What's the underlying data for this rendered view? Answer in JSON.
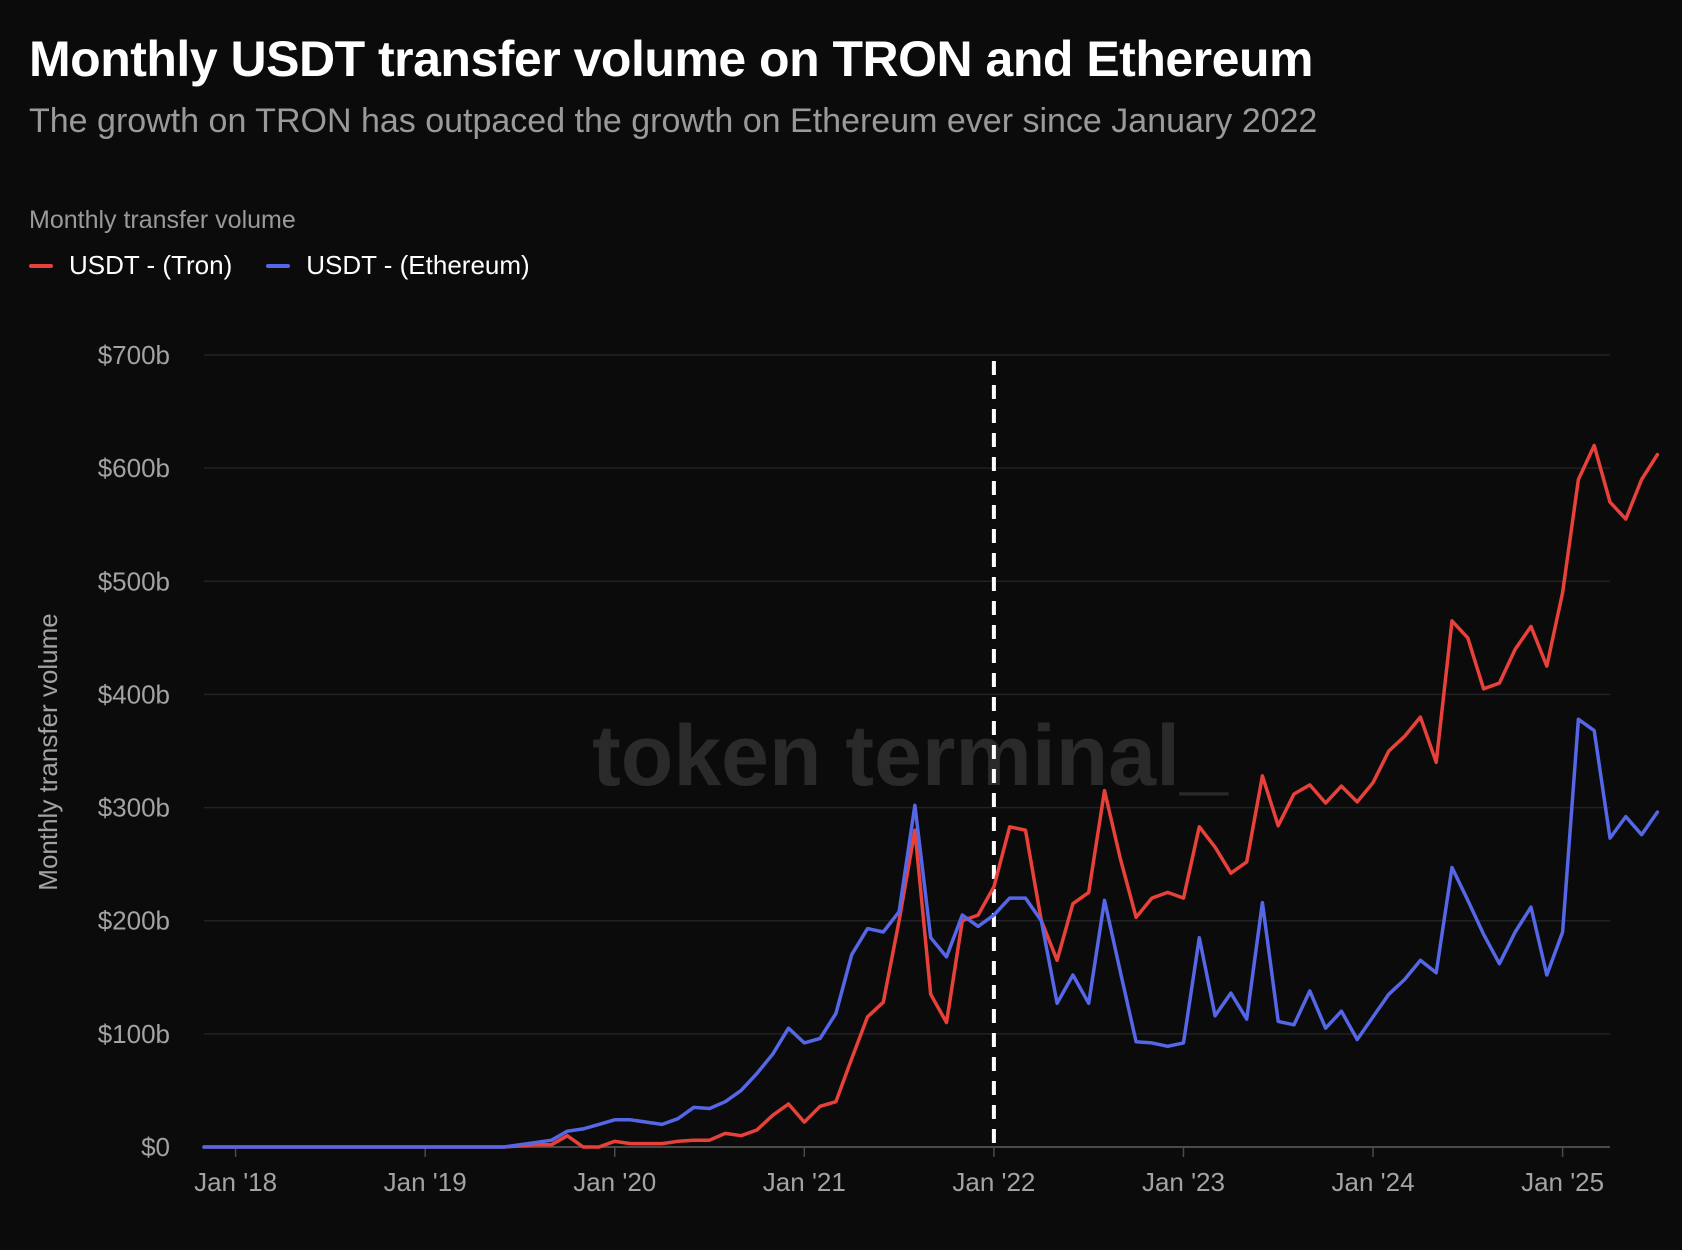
{
  "title": "Monthly USDT transfer volume on TRON and Ethereum",
  "subtitle": "The growth on TRON has outpaced the growth on Ethereum ever since January 2022",
  "legend": {
    "title": "Monthly transfer volume",
    "items": [
      {
        "label": "USDT - (Tron)",
        "color": "#e8413a"
      },
      {
        "label": "USDT - (Ethereum)",
        "color": "#5566e6"
      }
    ]
  },
  "watermark": "token terminal_",
  "colors": {
    "background": "#0b0b0c",
    "grid": "#222224",
    "axis": "#4a4a4d",
    "marker": "#ffffff"
  },
  "chart_data": {
    "type": "line",
    "ylabel": "Monthly transfer volume",
    "xlabel": "",
    "y_unit": "billions USD",
    "ylim": [
      0,
      700
    ],
    "yticks": [
      0,
      100,
      200,
      300,
      400,
      500,
      600,
      700
    ],
    "ytick_labels": [
      "$0",
      "$100b",
      "$200b",
      "$300b",
      "$400b",
      "$500b",
      "$600b",
      "$700b"
    ],
    "xlim": [
      "2017-11",
      "2025-04"
    ],
    "xticks": [
      "2018-01",
      "2019-01",
      "2020-01",
      "2021-01",
      "2022-01",
      "2023-01",
      "2024-01",
      "2025-01"
    ],
    "xtick_labels": [
      "Jan '18",
      "Jan '19",
      "Jan '20",
      "Jan '21",
      "Jan '22",
      "Jan '23",
      "Jan '24",
      "Jan '25"
    ],
    "grid": true,
    "legend_position": "top-left",
    "annotations": [
      {
        "type": "vertical-dashed-line",
        "x": "2022-01"
      }
    ],
    "start_month": "2017-11",
    "series": [
      {
        "name": "USDT - (Tron)",
        "color": "#e8413a",
        "values": [
          0,
          0,
          0,
          0,
          0,
          0,
          0,
          0,
          0,
          0,
          0,
          0,
          0,
          0,
          0,
          0,
          0,
          0,
          0,
          0,
          1,
          2,
          2,
          10,
          0,
          0,
          5,
          3,
          3,
          3,
          5,
          6,
          6,
          12,
          10,
          15,
          28,
          38,
          22,
          36,
          40,
          78,
          115,
          128,
          200,
          280,
          135,
          110,
          200,
          205,
          230,
          283,
          280,
          200,
          165,
          215,
          225,
          315,
          255,
          203,
          220,
          225,
          220,
          283,
          265,
          242,
          252,
          328,
          284,
          312,
          320,
          304,
          319,
          305,
          322,
          350,
          363,
          380,
          340,
          465,
          450,
          405,
          410,
          440,
          460,
          425,
          490,
          590,
          620,
          570,
          555,
          590,
          612
        ]
      },
      {
        "name": "USDT - (Ethereum)",
        "color": "#5566e6",
        "values": [
          0,
          0,
          0,
          0,
          0,
          0,
          0,
          0,
          0,
          0,
          0,
          0,
          0,
          0,
          0,
          0,
          0,
          0,
          0,
          0,
          2,
          4,
          6,
          14,
          16,
          20,
          24,
          24,
          22,
          20,
          25,
          35,
          34,
          40,
          50,
          65,
          82,
          105,
          92,
          96,
          118,
          170,
          193,
          190,
          208,
          302,
          185,
          168,
          205,
          195,
          205,
          220,
          220,
          200,
          127,
          152,
          127,
          218,
          155,
          93,
          92,
          89,
          92,
          185,
          116,
          136,
          113,
          216,
          111,
          108,
          138,
          105,
          120,
          95,
          115,
          135,
          148,
          165,
          154,
          247,
          218,
          188,
          162,
          190,
          212,
          152,
          190,
          378,
          368,
          273,
          292,
          276,
          296
        ]
      }
    ]
  }
}
